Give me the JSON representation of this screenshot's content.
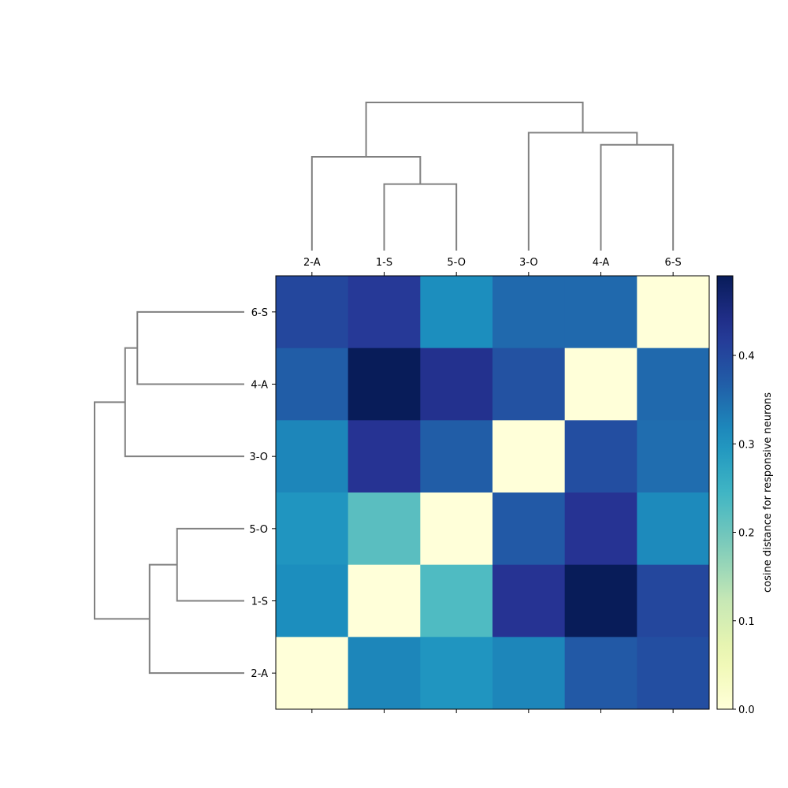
{
  "chart_data": {
    "type": "heatmap",
    "title": "",
    "row_labels": [
      "6-S",
      "4-A",
      "3-O",
      "5-O",
      "1-S",
      "2-A"
    ],
    "col_labels": [
      "2-A",
      "1-S",
      "5-O",
      "3-O",
      "4-A",
      "6-S"
    ],
    "values": [
      [
        0.4,
        0.42,
        0.31,
        0.355,
        0.355,
        0.0
      ],
      [
        0.37,
        0.49,
        0.435,
        0.385,
        0.0,
        0.355
      ],
      [
        0.32,
        0.43,
        0.37,
        0.0,
        0.39,
        0.35
      ],
      [
        0.3,
        0.22,
        0.0,
        0.375,
        0.43,
        0.315
      ],
      [
        0.31,
        0.0,
        0.23,
        0.43,
        0.49,
        0.4
      ],
      [
        0.0,
        0.32,
        0.3,
        0.32,
        0.375,
        0.39
      ]
    ],
    "colorbar": {
      "label": "cosine distance for responsive neurons",
      "range": [
        0.0,
        0.49
      ],
      "ticks": [
        "0.0",
        "0.1",
        "0.2",
        "0.3",
        "0.4"
      ],
      "tick_values": [
        0.0,
        0.1,
        0.2,
        0.3,
        0.4
      ],
      "colormap": "YlGnBu"
    },
    "dendrogram_color": "#808080",
    "dendrogram_top": {
      "leaves": [
        "2-A",
        "1-S",
        "5-O",
        "3-O",
        "4-A",
        "6-S"
      ],
      "links": [
        [
          "1-S",
          "5-O",
          0.22
        ],
        [
          "4-A",
          "6-S",
          0.35
        ],
        [
          "3-O",
          "[4-A,6-S]",
          0.39
        ],
        [
          "2-A",
          "[1-S,5-O]",
          0.31
        ],
        [
          "[2-A,1-S,5-O]",
          "[3-O,4-A,6-S]",
          0.49
        ]
      ]
    },
    "dendrogram_left": {
      "leaves": [
        "6-S",
        "4-A",
        "3-O",
        "5-O",
        "1-S",
        "2-A"
      ],
      "links": [
        [
          "6-S",
          "4-A",
          0.35
        ],
        [
          "[6-S,4-A]",
          "3-O",
          0.39
        ],
        [
          "5-O",
          "1-S",
          0.22
        ],
        [
          "[5-O,1-S]",
          "2-A",
          0.31
        ],
        [
          "[6-S,4-A,3-O]",
          "[5-O,1-S,2-A]",
          0.49
        ]
      ]
    }
  }
}
